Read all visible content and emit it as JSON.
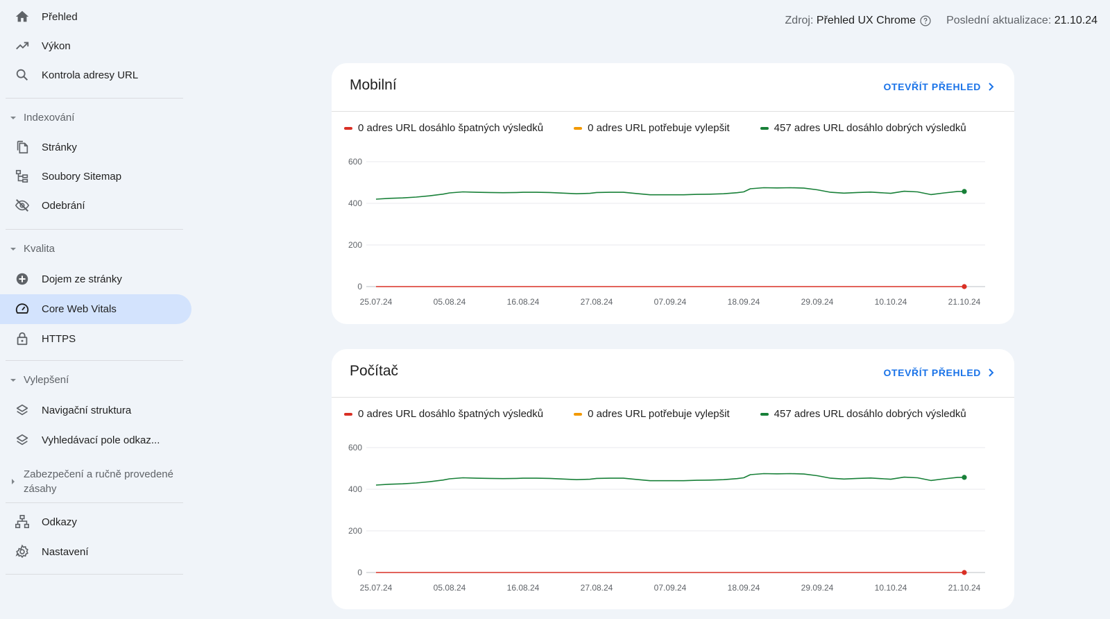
{
  "sidebar": {
    "items_top": [
      {
        "label": "Přehled",
        "icon": "home-icon"
      },
      {
        "label": "Výkon",
        "icon": "trending-up-icon"
      },
      {
        "label": "Kontrola adresy URL",
        "icon": "search-icon"
      }
    ],
    "sections": [
      {
        "title": "Indexování",
        "expanded": true,
        "items": [
          {
            "label": "Stránky",
            "icon": "pages-icon"
          },
          {
            "label": "Soubory Sitemap",
            "icon": "sitemap-icon"
          },
          {
            "label": "Odebrání",
            "icon": "visibility-off-icon"
          }
        ]
      },
      {
        "title": "Kvalita",
        "expanded": true,
        "items": [
          {
            "label": "Dojem ze stránky",
            "icon": "add-circle-icon"
          },
          {
            "label": "Core Web Vitals",
            "icon": "speed-gauge-icon",
            "active": true
          },
          {
            "label": "HTTPS",
            "icon": "lock-icon"
          }
        ]
      },
      {
        "title": "Vylepšení",
        "expanded": true,
        "items": [
          {
            "label": "Navigační struktura",
            "icon": "layers-icon"
          },
          {
            "label": "Vyhledávací pole odkaz...",
            "icon": "layers-icon"
          }
        ]
      },
      {
        "title": "Zabezpečení a ručně provedené zásahy",
        "expanded": false,
        "items": []
      }
    ],
    "items_bottom": [
      {
        "label": "Odkazy",
        "icon": "links-hierarchy-icon"
      },
      {
        "label": "Nastavení",
        "icon": "gear-icon"
      }
    ]
  },
  "header": {
    "source_label": "Zdroj:",
    "source_value": "Přehled UX Chrome",
    "updated_label": "Poslední aktualizace:",
    "updated_value": "21.10.24"
  },
  "colors": {
    "accent": "#1a73e8",
    "active_bg": "#d3e3fd",
    "poor": "#d93025",
    "needs_improvement": "#f29900",
    "good": "#188038"
  },
  "cards": [
    {
      "title": "Mobilní",
      "open_link": "OTEVŘÍT PŘEHLED",
      "legend": {
        "poor": "0 adres URL dosáhlo špatných výsledků",
        "needs": "0 adres URL potřebuje vylepšit",
        "good": "457 adres URL dosáhlo dobrých výsledků"
      },
      "chart_data": {
        "type": "line",
        "x_ticks": [
          "25.07.24",
          "05.08.24",
          "16.08.24",
          "27.08.24",
          "07.09.24",
          "18.09.24",
          "29.09.24",
          "10.10.24",
          "21.10.24"
        ],
        "y_ticks": [
          0,
          200,
          400,
          600
        ],
        "ylim": [
          0,
          600
        ],
        "grid": true,
        "series": [
          {
            "name": "0 adres URL dosáhlo špatných výsledků",
            "color": "#d93025",
            "x": [
              "25.07.24",
              "21.10.24"
            ],
            "y": [
              0,
              0
            ]
          },
          {
            "name": "457 adres URL dosáhlo dobrých výsledků",
            "color": "#188038",
            "x": [
              "25.07.24",
              "27.07.24",
              "29.07.24",
              "31.07.24",
              "02.08.24",
              "04.08.24",
              "05.08.24",
              "07.08.24",
              "09.08.24",
              "11.08.24",
              "13.08.24",
              "15.08.24",
              "16.08.24",
              "18.08.24",
              "20.08.24",
              "22.08.24",
              "24.08.24",
              "26.08.24",
              "27.08.24",
              "29.08.24",
              "31.08.24",
              "02.09.24",
              "04.09.24",
              "06.09.24",
              "07.09.24",
              "09.09.24",
              "11.09.24",
              "13.09.24",
              "15.09.24",
              "17.09.24",
              "18.09.24",
              "19.09.24",
              "21.09.24",
              "23.09.24",
              "25.09.24",
              "27.09.24",
              "29.09.24",
              "01.10.24",
              "03.10.24",
              "05.10.24",
              "07.10.24",
              "09.10.24",
              "10.10.24",
              "12.10.24",
              "14.10.24",
              "16.10.24",
              "18.10.24",
              "20.10.24",
              "21.10.24"
            ],
            "y": [
              420,
              424,
              426,
              430,
              436,
              444,
              450,
              455,
              453,
              452,
              451,
              452,
              453,
              453,
              452,
              449,
              446,
              448,
              452,
              453,
              453,
              447,
              441,
              441,
              441,
              441,
              443,
              444,
              446,
              451,
              455,
              470,
              475,
              474,
              475,
              473,
              465,
              453,
              449,
              452,
              454,
              450,
              448,
              458,
              455,
              442,
              450,
              457,
              457
            ]
          }
        ]
      }
    },
    {
      "title": "Počítač",
      "open_link": "OTEVŘÍT PŘEHLED",
      "legend": {
        "poor": "0 adres URL dosáhlo špatných výsledků",
        "needs": "0 adres URL potřebuje vylepšit",
        "good": "457 adres URL dosáhlo dobrých výsledků"
      },
      "chart_data": {
        "type": "line",
        "x_ticks": [
          "25.07.24",
          "05.08.24",
          "16.08.24",
          "27.08.24",
          "07.09.24",
          "18.09.24",
          "29.09.24",
          "10.10.24",
          "21.10.24"
        ],
        "y_ticks": [
          0,
          200,
          400,
          600
        ],
        "ylim": [
          0,
          600
        ],
        "grid": true,
        "series": [
          {
            "name": "0 adres URL dosáhlo špatných výsledků",
            "color": "#d93025",
            "x": [
              "25.07.24",
              "21.10.24"
            ],
            "y": [
              0,
              0
            ]
          },
          {
            "name": "457 adres URL dosáhlo dobrých výsledků",
            "color": "#188038",
            "x": [
              "25.07.24",
              "27.07.24",
              "29.07.24",
              "31.07.24",
              "02.08.24",
              "04.08.24",
              "05.08.24",
              "07.08.24",
              "09.08.24",
              "11.08.24",
              "13.08.24",
              "15.08.24",
              "16.08.24",
              "18.08.24",
              "20.08.24",
              "22.08.24",
              "24.08.24",
              "26.08.24",
              "27.08.24",
              "29.08.24",
              "31.08.24",
              "02.09.24",
              "04.09.24",
              "06.09.24",
              "07.09.24",
              "09.09.24",
              "11.09.24",
              "13.09.24",
              "15.09.24",
              "17.09.24",
              "18.09.24",
              "19.09.24",
              "21.09.24",
              "23.09.24",
              "25.09.24",
              "27.09.24",
              "29.09.24",
              "01.10.24",
              "03.10.24",
              "05.10.24",
              "07.10.24",
              "09.10.24",
              "10.10.24",
              "12.10.24",
              "14.10.24",
              "16.10.24",
              "18.10.24",
              "20.10.24",
              "21.10.24"
            ],
            "y": [
              420,
              424,
              426,
              430,
              436,
              444,
              450,
              455,
              453,
              452,
              451,
              452,
              453,
              453,
              452,
              449,
              446,
              448,
              452,
              453,
              453,
              447,
              441,
              441,
              441,
              441,
              443,
              444,
              446,
              451,
              455,
              470,
              475,
              474,
              475,
              473,
              465,
              453,
              449,
              452,
              454,
              450,
              448,
              458,
              455,
              442,
              450,
              457,
              457
            ]
          }
        ]
      }
    }
  ]
}
